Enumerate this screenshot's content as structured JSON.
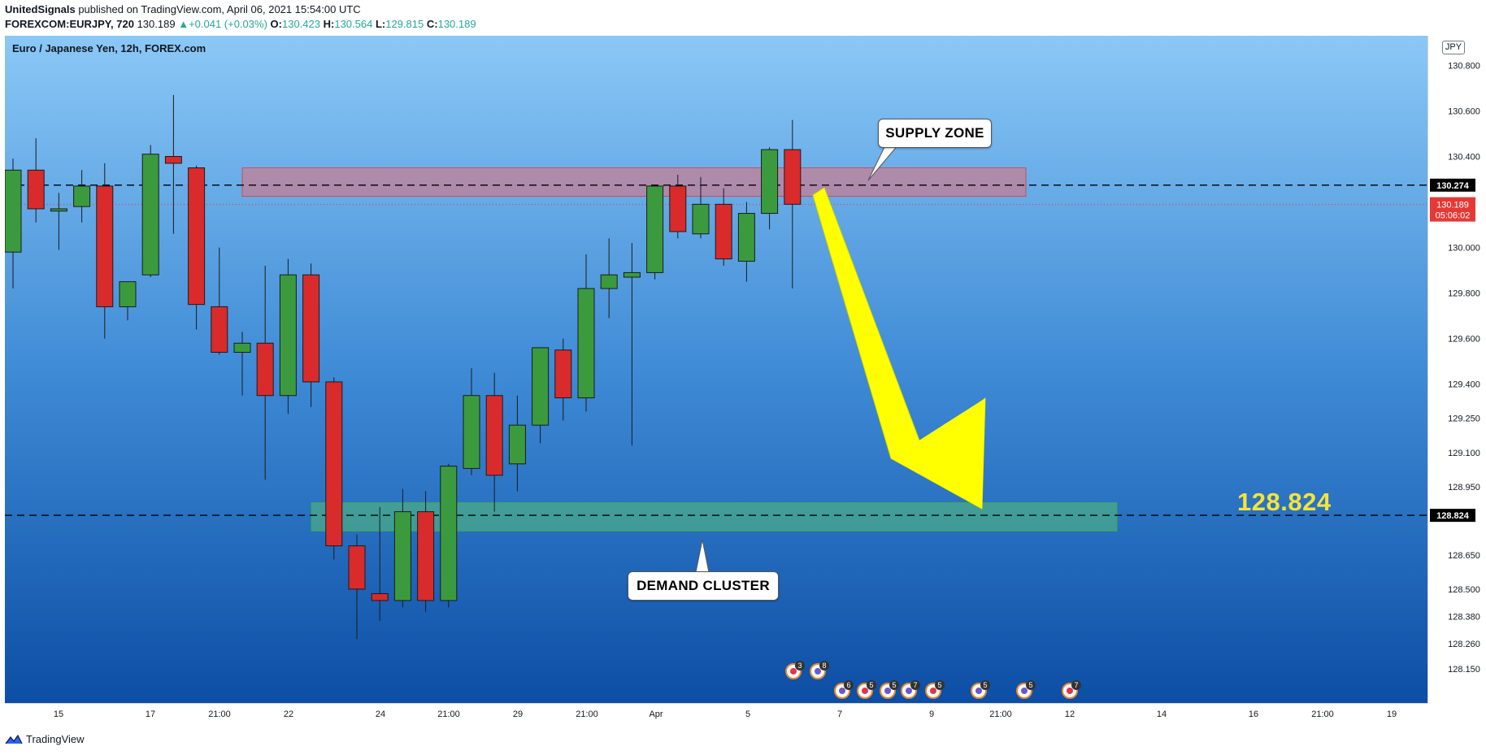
{
  "publisher": {
    "author": "UnitedSignals",
    "text": "published on TradingView.com, April 06, 2021 15:54:00 UTC"
  },
  "symbol_line": {
    "symbol": "FOREXCOM:EURJPY, 720",
    "price": "130.189",
    "change": "+0.041 (+0.03%)",
    "o_label": "O:",
    "o": "130.423",
    "h_label": "H:",
    "h": "130.564",
    "l_label": "L:",
    "l": "129.815",
    "c_label": "C:",
    "c": "130.189"
  },
  "chart_data": {
    "type": "candlestick",
    "title": "Euro / Japanese Yen, 12h, FOREX.com",
    "currency": "JPY",
    "ylim": [
      128.0,
      130.93
    ],
    "y_ticks": [
      "130.800",
      "130.600",
      "130.400",
      "130.000",
      "129.800",
      "129.600",
      "129.400",
      "129.250",
      "129.100",
      "128.950",
      "128.650",
      "128.500",
      "128.380",
      "128.260",
      "128.150"
    ],
    "x_ticks": [
      "15",
      "17",
      "21:00",
      "22",
      "24",
      "21:00",
      "29",
      "21:00",
      "Apr",
      "5",
      "7",
      "9",
      "21:00",
      "12",
      "14",
      "16",
      "21:00",
      "19"
    ],
    "candles": [
      {
        "o": 129.98,
        "h": 130.39,
        "l": 129.82,
        "c": 130.34
      },
      {
        "o": 130.34,
        "h": 130.48,
        "l": 130.11,
        "c": 130.17
      },
      {
        "o": 130.16,
        "h": 130.24,
        "l": 129.99,
        "c": 130.17
      },
      {
        "o": 130.18,
        "h": 130.34,
        "l": 130.11,
        "c": 130.27
      },
      {
        "o": 130.27,
        "h": 130.37,
        "l": 129.6,
        "c": 129.74
      },
      {
        "o": 129.74,
        "h": 129.85,
        "l": 129.68,
        "c": 129.85
      },
      {
        "o": 129.88,
        "h": 130.45,
        "l": 129.87,
        "c": 130.41
      },
      {
        "o": 130.4,
        "h": 130.67,
        "l": 130.06,
        "c": 130.37
      },
      {
        "o": 130.35,
        "h": 130.36,
        "l": 129.64,
        "c": 129.75
      },
      {
        "o": 129.74,
        "h": 130.0,
        "l": 129.53,
        "c": 129.54
      },
      {
        "o": 129.54,
        "h": 129.63,
        "l": 129.35,
        "c": 129.58
      },
      {
        "o": 129.58,
        "h": 129.92,
        "l": 128.98,
        "c": 129.35
      },
      {
        "o": 129.35,
        "h": 129.95,
        "l": 129.27,
        "c": 129.88
      },
      {
        "o": 129.88,
        "h": 129.93,
        "l": 129.3,
        "c": 129.41
      },
      {
        "o": 129.41,
        "h": 129.43,
        "l": 128.63,
        "c": 128.69
      },
      {
        "o": 128.69,
        "h": 128.74,
        "l": 128.28,
        "c": 128.5
      },
      {
        "o": 128.48,
        "h": 128.86,
        "l": 128.36,
        "c": 128.45
      },
      {
        "o": 128.45,
        "h": 128.94,
        "l": 128.42,
        "c": 128.84
      },
      {
        "o": 128.84,
        "h": 128.93,
        "l": 128.4,
        "c": 128.45
      },
      {
        "o": 128.45,
        "h": 129.05,
        "l": 128.42,
        "c": 129.04
      },
      {
        "o": 129.03,
        "h": 129.47,
        "l": 129.0,
        "c": 129.35
      },
      {
        "o": 129.35,
        "h": 129.45,
        "l": 128.84,
        "c": 129.0
      },
      {
        "o": 129.05,
        "h": 129.35,
        "l": 128.93,
        "c": 129.22
      },
      {
        "o": 129.22,
        "h": 129.55,
        "l": 129.14,
        "c": 129.56
      },
      {
        "o": 129.55,
        "h": 129.6,
        "l": 129.24,
        "c": 129.34
      },
      {
        "o": 129.34,
        "h": 129.97,
        "l": 129.28,
        "c": 129.82
      },
      {
        "o": 129.82,
        "h": 130.04,
        "l": 129.69,
        "c": 129.88
      },
      {
        "o": 129.87,
        "h": 130.02,
        "l": 129.13,
        "c": 129.89
      },
      {
        "o": 129.89,
        "h": 130.27,
        "l": 129.86,
        "c": 130.27
      },
      {
        "o": 130.27,
        "h": 130.32,
        "l": 130.04,
        "c": 130.07
      },
      {
        "o": 130.06,
        "h": 130.31,
        "l": 130.04,
        "c": 130.19
      },
      {
        "o": 130.19,
        "h": 130.26,
        "l": 129.92,
        "c": 129.95
      },
      {
        "o": 129.94,
        "h": 130.2,
        "l": 129.85,
        "c": 130.15
      },
      {
        "o": 130.15,
        "h": 130.44,
        "l": 130.08,
        "c": 130.43
      },
      {
        "o": 130.43,
        "h": 130.56,
        "l": 129.82,
        "c": 130.19
      }
    ],
    "supply_zone": {
      "label": "SUPPLY ZONE",
      "top": 130.35,
      "bottom": 130.225
    },
    "demand_zone": {
      "label": "DEMAND CLUSTER",
      "top": 128.88,
      "bottom": 128.755
    },
    "levels": [
      {
        "value": "130.274",
        "style": "dashed"
      },
      {
        "value": "128.824",
        "style": "dashed"
      }
    ],
    "last_price": {
      "value": "130.189",
      "countdown": "05:06:02"
    },
    "target_label": "128.824",
    "event_markers": [
      "3",
      "8",
      "6",
      "5",
      "5",
      "7",
      "5",
      "5",
      "5",
      "7"
    ]
  },
  "footer": {
    "brand": "TradingView"
  },
  "colors": {
    "up": "#3c9a3e",
    "down": "#d92b2b",
    "bg_top": "#8bc8f6",
    "bg_bottom": "#0c4ea5",
    "arrow": "#ffff00",
    "target": "#f5e33a",
    "accent_green": "#26a69a"
  }
}
